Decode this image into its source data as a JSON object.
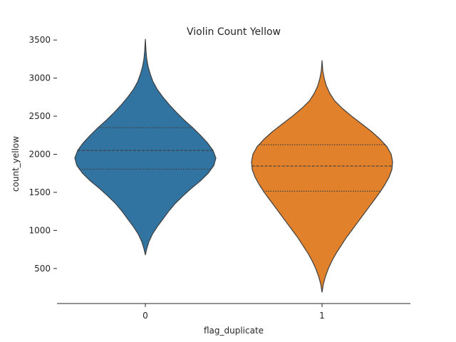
{
  "chart_data": {
    "type": "violin",
    "title": "Violin Count Yellow",
    "xlabel": "flag_duplicate",
    "ylabel": "count_yellow",
    "categories": [
      "0",
      "1"
    ],
    "yticks": [
      500,
      1000,
      1500,
      2000,
      2500,
      3000,
      3500
    ],
    "ylim": [
      40,
      3670
    ],
    "inner": "quartile",
    "grid": false,
    "legend": "none",
    "series": [
      {
        "category": "0",
        "color": "#3274a1",
        "min": 680,
        "max": 3510,
        "q1": 1805,
        "median": 2050,
        "q3": 2350,
        "density": [
          [
            680,
            0.0
          ],
          [
            760,
            0.02
          ],
          [
            850,
            0.05
          ],
          [
            950,
            0.1
          ],
          [
            1050,
            0.17
          ],
          [
            1150,
            0.25
          ],
          [
            1250,
            0.33
          ],
          [
            1350,
            0.42
          ],
          [
            1450,
            0.53
          ],
          [
            1550,
            0.65
          ],
          [
            1650,
            0.78
          ],
          [
            1750,
            0.89
          ],
          [
            1850,
            0.97
          ],
          [
            1950,
            1.0
          ],
          [
            2050,
            0.96
          ],
          [
            2150,
            0.88
          ],
          [
            2250,
            0.78
          ],
          [
            2350,
            0.67
          ],
          [
            2450,
            0.55
          ],
          [
            2550,
            0.44
          ],
          [
            2650,
            0.34
          ],
          [
            2750,
            0.25
          ],
          [
            2850,
            0.17
          ],
          [
            2950,
            0.11
          ],
          [
            3050,
            0.07
          ],
          [
            3150,
            0.04
          ],
          [
            3250,
            0.02
          ],
          [
            3350,
            0.01
          ],
          [
            3510,
            0.0
          ]
        ]
      },
      {
        "category": "1",
        "color": "#e1812c",
        "min": 190,
        "max": 3230,
        "q1": 1515,
        "median": 1845,
        "q3": 2125,
        "density": [
          [
            190,
            0.0
          ],
          [
            300,
            0.02
          ],
          [
            400,
            0.05
          ],
          [
            500,
            0.09
          ],
          [
            600,
            0.14
          ],
          [
            700,
            0.2
          ],
          [
            800,
            0.27
          ],
          [
            900,
            0.34
          ],
          [
            1000,
            0.42
          ],
          [
            1100,
            0.5
          ],
          [
            1200,
            0.58
          ],
          [
            1300,
            0.66
          ],
          [
            1400,
            0.74
          ],
          [
            1500,
            0.82
          ],
          [
            1600,
            0.89
          ],
          [
            1700,
            0.95
          ],
          [
            1800,
            0.99
          ],
          [
            1900,
            1.0
          ],
          [
            2000,
            0.98
          ],
          [
            2100,
            0.92
          ],
          [
            2200,
            0.82
          ],
          [
            2300,
            0.7
          ],
          [
            2400,
            0.56
          ],
          [
            2500,
            0.42
          ],
          [
            2600,
            0.29
          ],
          [
            2700,
            0.18
          ],
          [
            2800,
            0.11
          ],
          [
            2900,
            0.06
          ],
          [
            3000,
            0.03
          ],
          [
            3100,
            0.01
          ],
          [
            3230,
            0.0
          ]
        ]
      }
    ]
  }
}
